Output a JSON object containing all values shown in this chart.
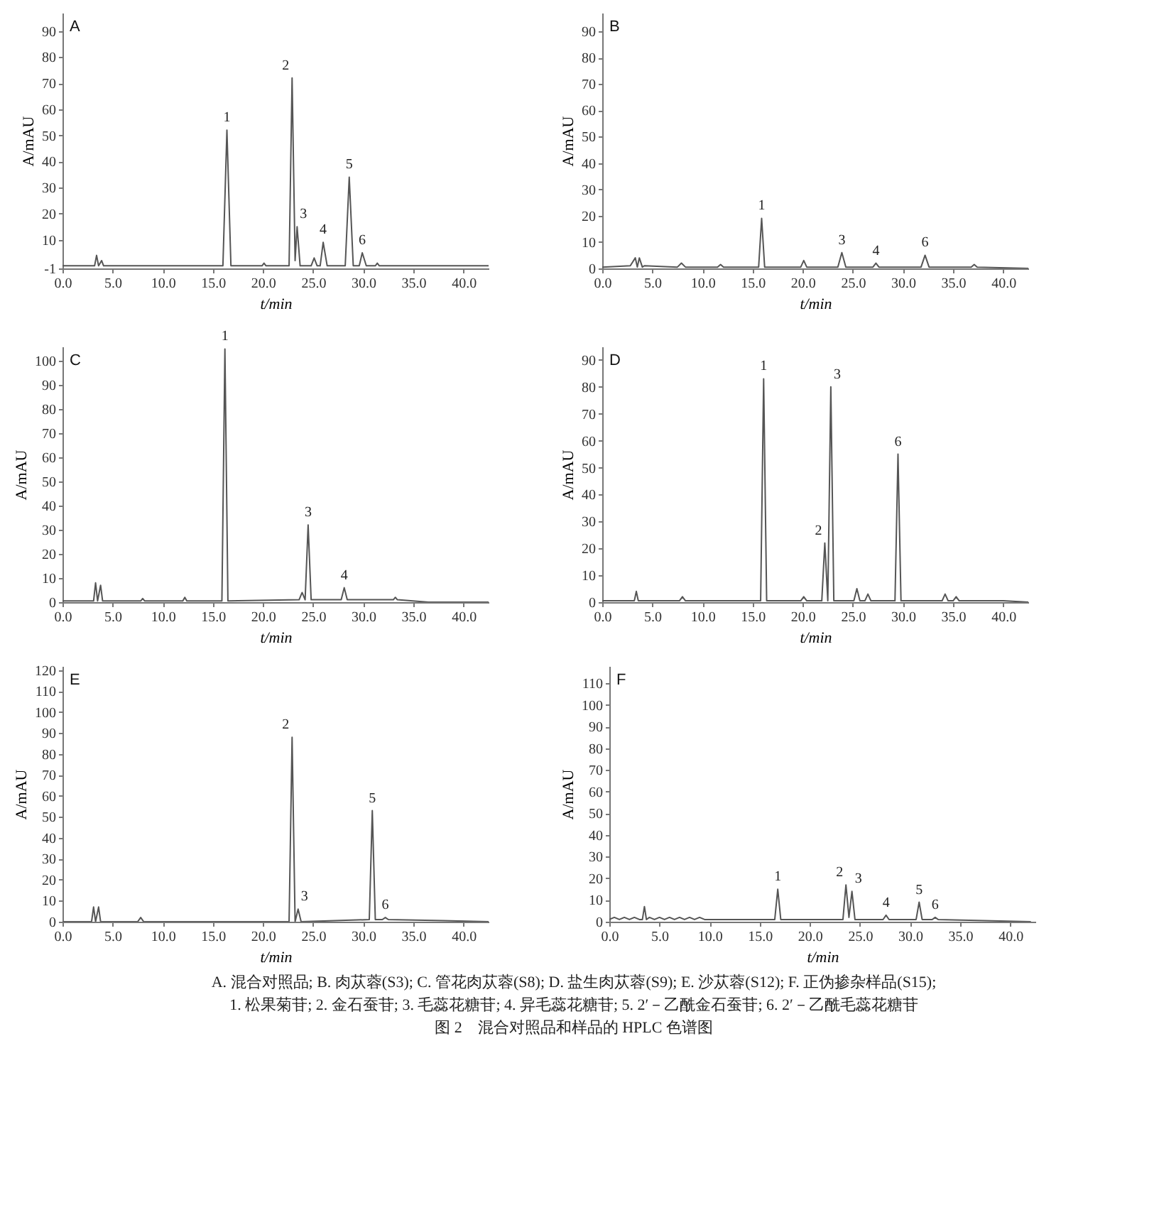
{
  "chart_data": [
    {
      "type": "line",
      "title": "A",
      "xlabel": "t/min",
      "ylabel": "A/mAU",
      "xlim": [
        0,
        42.5
      ],
      "ylim": [
        -1,
        97
      ],
      "xticks": [
        {
          "value": 0,
          "label": "0.0"
        },
        {
          "value": 5,
          "label": "5.0"
        },
        {
          "value": 10,
          "label": "10.0"
        },
        {
          "value": 15,
          "label": "15.0"
        },
        {
          "value": 20,
          "label": "20.0"
        },
        {
          "value": 25,
          "label": "25.0"
        },
        {
          "value": 30,
          "label": "30.0"
        },
        {
          "value": 35,
          "label": "35.0"
        },
        {
          "value": 40,
          "label": "40.0"
        }
      ],
      "yticks": [
        -1,
        10,
        20,
        30,
        40,
        50,
        60,
        70,
        80,
        90
      ],
      "grid": false,
      "marker": "none",
      "series": [
        {
          "color": "#555555",
          "x": [
            0,
            3.2,
            3.4,
            3.6,
            3.9,
            4.1,
            4.3,
            16.0,
            16.4,
            16.8,
            19.9,
            20.1,
            20.3,
            22.6,
            22.9,
            23.2,
            23.4,
            23.7,
            24.8,
            25.1,
            25.4,
            25.7,
            26.0,
            26.4,
            28.2,
            28.6,
            29.0,
            29.6,
            29.9,
            30.3,
            31.2,
            31.4,
            31.6,
            42.5
          ],
          "values": [
            0,
            0,
            4,
            0,
            2,
            0,
            0,
            0,
            52,
            0,
            0,
            1,
            0,
            0,
            72,
            2,
            15,
            0,
            0,
            3,
            0,
            0,
            9,
            0,
            0,
            34,
            0,
            0,
            5,
            0,
            0,
            1,
            0,
            0
          ]
        }
      ],
      "annotations": [
        {
          "text": "1",
          "x": 16.4,
          "y": 52
        },
        {
          "text": "2",
          "x": 22.9,
          "y": 72
        },
        {
          "text": "3",
          "x": 23.4,
          "y": 15
        },
        {
          "text": "4",
          "x": 26.0,
          "y": 9
        },
        {
          "text": "5",
          "x": 28.6,
          "y": 34
        },
        {
          "text": "6",
          "x": 29.9,
          "y": 5
        }
      ]
    },
    {
      "type": "line",
      "title": "B",
      "xlabel": "t/min",
      "ylabel": "A/mAU",
      "xlim": [
        0,
        42.5
      ],
      "ylim": [
        0,
        97
      ],
      "xticks": [
        {
          "value": 0,
          "label": "0.0"
        },
        {
          "value": 5,
          "label": "5.0"
        },
        {
          "value": 10,
          "label": "10.0"
        },
        {
          "value": 15,
          "label": "15.0"
        },
        {
          "value": 20,
          "label": "20.0"
        },
        {
          "value": 25,
          "label": "25.0"
        },
        {
          "value": 30,
          "label": "30.0"
        },
        {
          "value": 35,
          "label": "35.0"
        },
        {
          "value": 40,
          "label": "40.0"
        }
      ],
      "yticks": [
        0,
        10,
        20,
        30,
        40,
        50,
        60,
        70,
        80,
        90
      ],
      "grid": false,
      "marker": "none",
      "series": [
        {
          "color": "#555555",
          "x": [
            0,
            2.8,
            3.3,
            3.5,
            3.7,
            4.0,
            4.2,
            7.5,
            7.9,
            8.3,
            11.5,
            11.8,
            12.1,
            15.6,
            15.9,
            16.2,
            19.8,
            20.1,
            20.4,
            23.5,
            23.9,
            24.3,
            27.0,
            27.3,
            27.6,
            31.8,
            32.2,
            32.6,
            36.8,
            37.1,
            37.4,
            42.5
          ],
          "values": [
            0.5,
            1,
            4,
            0.5,
            4,
            0.5,
            1,
            0.5,
            2,
            0.5,
            0.5,
            1.5,
            0.5,
            0.5,
            19,
            0.5,
            0.5,
            3,
            0.5,
            0.5,
            6,
            0.5,
            0.5,
            2,
            0.5,
            0.5,
            5,
            0.5,
            0.5,
            1.5,
            0.5,
            0
          ]
        }
      ],
      "annotations": [
        {
          "text": "1",
          "x": 15.9,
          "y": 19
        },
        {
          "text": "3",
          "x": 23.9,
          "y": 6
        },
        {
          "text": "4",
          "x": 27.3,
          "y": 2
        },
        {
          "text": "6",
          "x": 32.2,
          "y": 5
        }
      ]
    },
    {
      "type": "line",
      "title": "C",
      "xlabel": "t/min",
      "ylabel": "A/mAU",
      "xlim": [
        0,
        42.5
      ],
      "ylim": [
        0,
        106
      ],
      "xticks": [
        {
          "value": 0,
          "label": "0.0"
        },
        {
          "value": 5,
          "label": "5.0"
        },
        {
          "value": 10,
          "label": "10.0"
        },
        {
          "value": 15,
          "label": "15.0"
        },
        {
          "value": 20,
          "label": "20.0"
        },
        {
          "value": 25,
          "label": "25.0"
        },
        {
          "value": 30,
          "label": "30.0"
        },
        {
          "value": 35,
          "label": "35.0"
        },
        {
          "value": 40,
          "label": "40.0"
        }
      ],
      "yticks": [
        0,
        10,
        20,
        30,
        40,
        50,
        60,
        70,
        80,
        90,
        100
      ],
      "grid": false,
      "marker": "none",
      "series": [
        {
          "color": "#555555",
          "x": [
            0,
            3.1,
            3.3,
            3.5,
            3.8,
            4.0,
            4.2,
            7.8,
            8.0,
            8.2,
            12.0,
            12.2,
            12.4,
            15.9,
            16.2,
            16.5,
            23.6,
            23.9,
            24.2,
            24.5,
            24.8,
            27.8,
            28.1,
            28.4,
            33.0,
            33.2,
            33.4,
            36.5,
            42.5
          ],
          "values": [
            0.5,
            0.5,
            8,
            0.5,
            7,
            0.5,
            0.5,
            0.5,
            1.5,
            0.5,
            0.5,
            2,
            0.5,
            0.5,
            105,
            0.5,
            1,
            4,
            1,
            32,
            1,
            1,
            6,
            1,
            1,
            2,
            1,
            0,
            0
          ]
        }
      ],
      "annotations": [
        {
          "text": "1",
          "x": 16.2,
          "y": 105
        },
        {
          "text": "3",
          "x": 24.5,
          "y": 32
        },
        {
          "text": "4",
          "x": 28.1,
          "y": 6
        }
      ]
    },
    {
      "type": "line",
      "title": "D",
      "xlabel": "t/min",
      "ylabel": "A/mAU",
      "xlim": [
        0,
        42.5
      ],
      "ylim": [
        0,
        95
      ],
      "xticks": [
        {
          "value": 0,
          "label": "0.0"
        },
        {
          "value": 5,
          "label": "5.0"
        },
        {
          "value": 10,
          "label": "10.0"
        },
        {
          "value": 15,
          "label": "15.0"
        },
        {
          "value": 20,
          "label": "20.0"
        },
        {
          "value": 25,
          "label": "25.0"
        },
        {
          "value": 30,
          "label": "30.0"
        },
        {
          "value": 35,
          "label": "35.0"
        },
        {
          "value": 40,
          "label": "40.0"
        }
      ],
      "yticks": [
        0,
        10,
        20,
        30,
        40,
        50,
        60,
        70,
        80,
        90
      ],
      "grid": false,
      "marker": "none",
      "series": [
        {
          "color": "#555555",
          "x": [
            0,
            3.2,
            3.4,
            3.6,
            7.7,
            8.0,
            8.3,
            15.8,
            16.1,
            16.4,
            19.8,
            20.1,
            20.4,
            21.9,
            22.2,
            22.5,
            22.8,
            23.1,
            25.1,
            25.4,
            25.7,
            26.2,
            26.5,
            26.8,
            29.2,
            29.5,
            29.8,
            33.9,
            34.2,
            34.5,
            35.0,
            35.3,
            35.6,
            40.0,
            42.5
          ],
          "values": [
            0.5,
            0.5,
            4,
            0.5,
            0.5,
            2,
            0.5,
            0.5,
            83,
            0.5,
            0.5,
            2,
            0.5,
            0.5,
            22,
            0.5,
            80,
            0.5,
            0.5,
            5,
            0.5,
            0.5,
            3,
            0.5,
            0.5,
            55,
            0.5,
            0.5,
            3,
            0.5,
            0.5,
            2,
            0.5,
            0.5,
            0
          ]
        }
      ],
      "annotations": [
        {
          "text": "1",
          "x": 16.1,
          "y": 83
        },
        {
          "text": "2",
          "x": 22.2,
          "y": 22
        },
        {
          "text": "3",
          "x": 22.8,
          "y": 80
        },
        {
          "text": "6",
          "x": 29.5,
          "y": 55
        }
      ]
    },
    {
      "type": "line",
      "title": "E",
      "xlabel": "t/min",
      "ylabel": "A/mAU",
      "xlim": [
        0,
        42.5
      ],
      "ylim": [
        0,
        122
      ],
      "xticks": [
        {
          "value": 0,
          "label": "0.0"
        },
        {
          "value": 5,
          "label": "5.0"
        },
        {
          "value": 10,
          "label": "10.0"
        },
        {
          "value": 15,
          "label": "15.0"
        },
        {
          "value": 20,
          "label": "20.0"
        },
        {
          "value": 25,
          "label": "25.0"
        },
        {
          "value": 30,
          "label": "30.0"
        },
        {
          "value": 35,
          "label": "35.0"
        },
        {
          "value": 40,
          "label": "40.0"
        }
      ],
      "yticks": [
        0,
        10,
        20,
        30,
        40,
        50,
        60,
        70,
        80,
        90,
        100,
        110,
        120
      ],
      "grid": false,
      "marker": "none",
      "series": [
        {
          "color": "#555555",
          "x": [
            0,
            2.9,
            3.1,
            3.3,
            3.6,
            3.8,
            4.0,
            7.5,
            7.8,
            8.1,
            22.6,
            22.9,
            23.2,
            23.5,
            23.8,
            30.6,
            30.9,
            31.2,
            31.9,
            32.2,
            32.5,
            38,
            42.5
          ],
          "values": [
            0,
            0,
            7,
            0,
            7,
            0,
            0,
            0,
            2,
            0,
            0,
            88,
            0,
            6,
            0,
            1,
            53,
            1,
            1,
            2,
            1,
            0.5,
            0
          ]
        }
      ],
      "annotations": [
        {
          "text": "2",
          "x": 22.9,
          "y": 88
        },
        {
          "text": "3",
          "x": 23.5,
          "y": 6
        },
        {
          "text": "5",
          "x": 30.9,
          "y": 53
        },
        {
          "text": "6",
          "x": 32.2,
          "y": 2
        }
      ]
    },
    {
      "type": "line",
      "title": "F",
      "xlabel": "t/min",
      "ylabel": "A/mAU",
      "xlim": [
        0,
        42.5
      ],
      "ylim": [
        0,
        118
      ],
      "xticks": [
        {
          "value": 0,
          "label": "0.0"
        },
        {
          "value": 5,
          "label": "5.0"
        },
        {
          "value": 10,
          "label": "10.0"
        },
        {
          "value": 15,
          "label": "15.0"
        },
        {
          "value": 20,
          "label": "20.0"
        },
        {
          "value": 25,
          "label": "25.0"
        },
        {
          "value": 30,
          "label": "30.0"
        },
        {
          "value": 35,
          "label": "35.0"
        },
        {
          "value": 40,
          "label": "40.0"
        }
      ],
      "yticks": [
        0,
        10,
        20,
        30,
        40,
        50,
        60,
        70,
        80,
        90,
        100,
        110
      ],
      "grid": false,
      "marker": "none",
      "series": [
        {
          "color": "#555555",
          "x": [
            0,
            0.5,
            1,
            1.5,
            2,
            2.5,
            3,
            3.3,
            3.5,
            3.7,
            4,
            4.5,
            5,
            5.5,
            6,
            6.5,
            7,
            7.5,
            8,
            8.5,
            9,
            9.5,
            10,
            16.5,
            16.8,
            17.1,
            23.3,
            23.6,
            23.9,
            24.2,
            24.5,
            27.3,
            27.6,
            27.9,
            30.6,
            30.9,
            31.2,
            32.2,
            32.5,
            32.8,
            42
          ],
          "values": [
            1,
            2,
            1,
            2,
            1,
            2,
            1,
            1,
            7,
            1,
            2,
            1,
            2,
            1,
            2,
            1,
            2,
            1,
            2,
            1,
            2,
            1,
            1,
            1,
            15,
            1,
            1,
            17,
            2,
            14,
            1,
            1,
            3,
            1,
            1,
            9,
            1,
            1,
            2,
            1,
            0
          ]
        }
      ],
      "annotations": [
        {
          "text": "1",
          "x": 16.8,
          "y": 15
        },
        {
          "text": "2",
          "x": 23.6,
          "y": 17
        },
        {
          "text": "3",
          "x": 24.2,
          "y": 14
        },
        {
          "text": "4",
          "x": 27.6,
          "y": 3
        },
        {
          "text": "5",
          "x": 30.9,
          "y": 9
        },
        {
          "text": "6",
          "x": 32.5,
          "y": 2
        },
        "A. 混合对照品; B. 肉苁蓉(S3); C. 管花肉苁蓉(S8); D. 盐生肉苁蓉(S9); E. 沙苁蓉(S12); F. 正伪掺杂样品(S15);",
        "1. 松果菊苷; 2. 金石蚕苷; 3. 毛蕊花糖苷; 4. 异毛蕊花糖苷; 5. 2′－乙酰金石蚕苷; 6. 2′－乙酰毛蕊花糖苷",
        "图 2　混合对照品和样品的 HPLC 色谱图"
      ]
    }
  ]
}
